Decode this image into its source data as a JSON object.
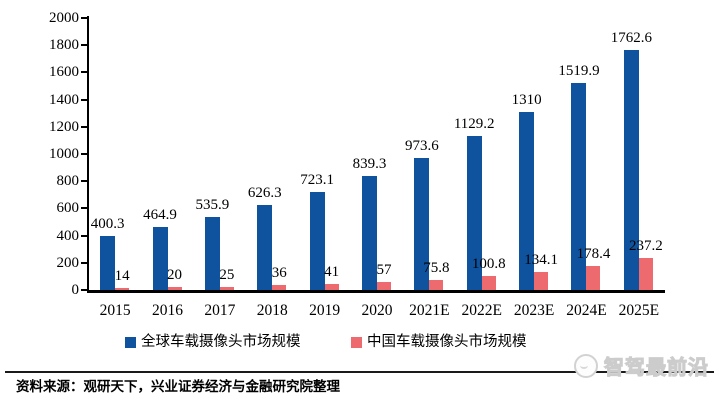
{
  "chart_data": {
    "type": "bar",
    "categories": [
      "2015",
      "2016",
      "2017",
      "2018",
      "2019",
      "2020",
      "2021E",
      "2022E",
      "2023E",
      "2024E",
      "2025E"
    ],
    "series": [
      {
        "name": "全球车载摄像头市场规模",
        "color": "#0F539E",
        "values": [
          400.3,
          464.9,
          535.9,
          626.3,
          723.1,
          839.3,
          973.6,
          1129.2,
          1310,
          1519.9,
          1762.6
        ]
      },
      {
        "name": "中国车载摄像头市场规模",
        "color": "#ED6A6E",
        "values": [
          14,
          20,
          25,
          36,
          41,
          57,
          75.8,
          100.8,
          134.1,
          178.4,
          237.2
        ]
      }
    ],
    "title": "",
    "xlabel": "",
    "ylabel": "",
    "ylim": [
      0,
      2000
    ],
    "ytick_step": 200,
    "grid": false,
    "legend_position": "bottom",
    "value_labels": true
  },
  "footer": {
    "source_text": "资料来源：观研天下，兴业证券经济与金融研究院整理"
  },
  "watermark": {
    "text": "智驾最前沿",
    "logo": "smiley-circle-logo"
  }
}
